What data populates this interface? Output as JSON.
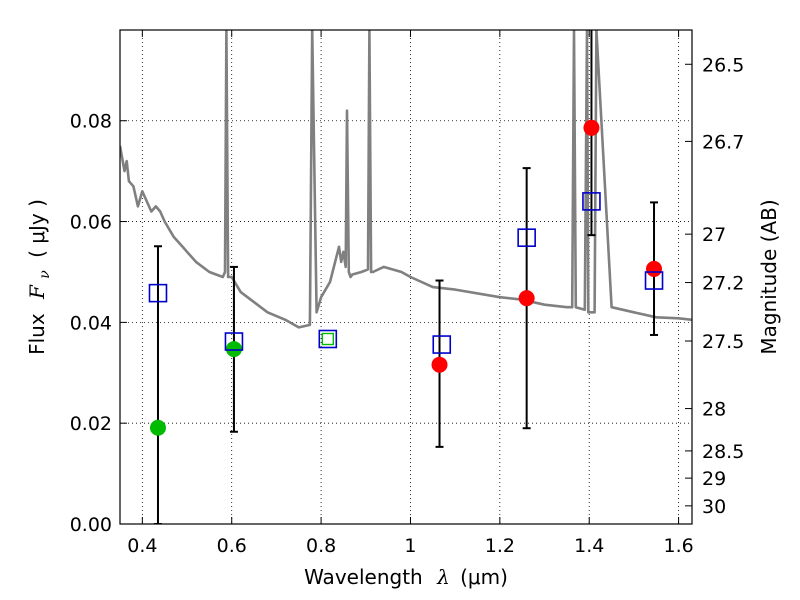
{
  "chart_data": {
    "type": "scatter",
    "xlabel": "Wavelength",
    "xlabel_symbol": "λ",
    "xlabel_unit": "(μm)",
    "ylabel": "Flux",
    "ylabel_symbol": "F",
    "ylabel_subscript": "ν",
    "ylabel_unit": "( μJy )",
    "y2label": "Magnitude (AB)",
    "xlim": [
      0.35,
      1.63
    ],
    "ylim": [
      0.0,
      0.098
    ],
    "grid": true,
    "x_ticks": [
      0.4,
      0.6,
      0.8,
      1.0,
      1.2,
      1.4,
      1.6
    ],
    "x_tick_labels": [
      "0.4",
      "0.6",
      "0.8",
      "1",
      "1.2",
      "1.4",
      "1.6"
    ],
    "y_ticks": [
      0.0,
      0.02,
      0.04,
      0.06,
      0.08
    ],
    "y_tick_labels": [
      "0.00",
      "0.02",
      "0.04",
      "0.06",
      "0.08"
    ],
    "y2_ticks": [
      {
        "label": "26.5",
        "flux": 0.0912
      },
      {
        "label": "26.7",
        "flux": 0.0759
      },
      {
        "label": "27",
        "flux": 0.0575
      },
      {
        "label": "27.2",
        "flux": 0.0479
      },
      {
        "label": "27.5",
        "flux": 0.0363
      },
      {
        "label": "28",
        "flux": 0.0229
      },
      {
        "label": "28.5",
        "flux": 0.0145
      },
      {
        "label": "29",
        "flux": 0.0091
      },
      {
        "label": "30",
        "flux": 0.0036
      }
    ],
    "colors": {
      "model": "#808080",
      "optical_detection": "#00bb00",
      "ir_detection": "#ff0000",
      "model_photometry": "#0000cc",
      "errorbar": "#000000"
    },
    "model_spectrum": {
      "x": [
        0.35,
        0.36,
        0.365,
        0.37,
        0.38,
        0.39,
        0.4,
        0.41,
        0.42,
        0.43,
        0.44,
        0.45,
        0.47,
        0.49,
        0.5,
        0.52,
        0.55,
        0.58,
        0.585,
        0.588,
        0.592,
        0.6,
        0.62,
        0.65,
        0.68,
        0.72,
        0.75,
        0.775,
        0.78,
        0.79,
        0.8,
        0.82,
        0.84,
        0.845,
        0.85,
        0.855,
        0.858,
        0.862,
        0.866,
        0.87,
        0.89,
        0.905,
        0.908,
        0.912,
        0.916,
        0.94,
        0.98,
        1.0,
        1.05,
        1.1,
        1.2,
        1.25,
        1.3,
        1.35,
        1.362,
        1.366,
        1.37,
        1.39,
        1.395,
        1.398,
        1.412,
        1.416,
        1.45,
        1.5,
        1.55,
        1.6,
        1.63
      ],
      "y": [
        0.075,
        0.07,
        0.072,
        0.068,
        0.067,
        0.063,
        0.066,
        0.064,
        0.062,
        0.063,
        0.062,
        0.06,
        0.057,
        0.055,
        0.054,
        0.052,
        0.05,
        0.049,
        0.05,
        0.098,
        0.049,
        0.049,
        0.046,
        0.044,
        0.042,
        0.0405,
        0.039,
        0.0395,
        0.098,
        0.042,
        0.045,
        0.048,
        0.055,
        0.052,
        0.054,
        0.051,
        0.082,
        0.05,
        0.049,
        0.0495,
        0.05,
        0.0505,
        0.098,
        0.05,
        0.05,
        0.051,
        0.05,
        0.049,
        0.047,
        0.0465,
        0.045,
        0.0445,
        0.0435,
        0.043,
        0.043,
        0.098,
        0.043,
        0.0425,
        0.098,
        0.042,
        0.042,
        0.098,
        0.043,
        0.042,
        0.041,
        0.0408,
        0.0405
      ]
    },
    "series": [
      {
        "marker": "circle",
        "color": "#00bb00",
        "points": [
          {
            "x": 0.435,
            "y": 0.0191,
            "err_low": 0.0191,
            "err_high": 0.036
          },
          {
            "x": 0.605,
            "y": 0.0347,
            "err_low": 0.0164,
            "err_high": 0.0163
          }
        ]
      },
      {
        "marker": "circle",
        "color": "#ff0000",
        "points": [
          {
            "x": 1.065,
            "y": 0.0316,
            "err_low": 0.0163,
            "err_high": 0.0167
          },
          {
            "x": 1.26,
            "y": 0.0448,
            "err_low": 0.0258,
            "err_high": 0.0258
          },
          {
            "x": 1.405,
            "y": 0.0786,
            "err_low": 0.0213,
            "err_high": 0.02
          },
          {
            "x": 1.545,
            "y": 0.0506,
            "err_low": 0.0131,
            "err_high": 0.0132
          }
        ]
      },
      {
        "marker": "open-square",
        "color": "#0000cc",
        "points": [
          {
            "x": 0.435,
            "y": 0.0458
          },
          {
            "x": 0.605,
            "y": 0.0362
          },
          {
            "x": 0.815,
            "y": 0.0367
          },
          {
            "x": 1.07,
            "y": 0.0356
          },
          {
            "x": 1.26,
            "y": 0.0568
          },
          {
            "x": 1.405,
            "y": 0.064
          },
          {
            "x": 1.545,
            "y": 0.0483
          }
        ]
      },
      {
        "marker": "open-square-small",
        "color": "#00bb00",
        "points": [
          {
            "x": 0.815,
            "y": 0.0367
          }
        ]
      }
    ]
  }
}
